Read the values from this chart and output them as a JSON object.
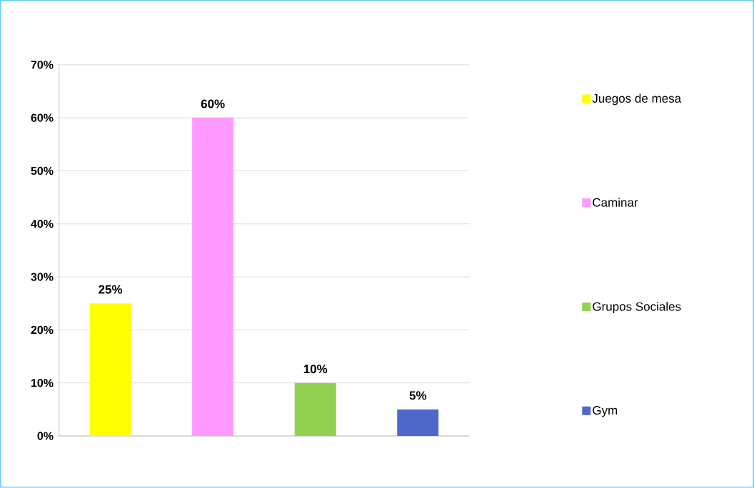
{
  "chart_data": {
    "type": "bar",
    "categories": [
      null,
      null,
      null,
      null
    ],
    "series": [
      {
        "name": "Juegos de mesa",
        "color": "#ffff00",
        "values": [
          25,
          null,
          null,
          null
        ],
        "value_labels": [
          "25%",
          null,
          null,
          null
        ]
      },
      {
        "name": "Caminar",
        "color": "#ff99ff",
        "values": [
          null,
          60,
          null,
          null
        ],
        "value_labels": [
          null,
          "60%",
          null,
          null
        ]
      },
      {
        "name": "Grupos Sociales",
        "color": "#92d050",
        "values": [
          null,
          null,
          10,
          null
        ],
        "value_labels": [
          null,
          null,
          "10%",
          null
        ]
      },
      {
        "name": "Gym",
        "color": "#4f67c8",
        "values": [
          null,
          null,
          null,
          5
        ],
        "value_labels": [
          null,
          null,
          null,
          "5%"
        ]
      }
    ],
    "ylim": [
      0,
      70
    ],
    "yticks": [
      {
        "value": 0,
        "label": "0%"
      },
      {
        "value": 10,
        "label": "10%"
      },
      {
        "value": 20,
        "label": "20%"
      },
      {
        "value": 30,
        "label": "30%"
      },
      {
        "value": 40,
        "label": "40%"
      },
      {
        "value": 50,
        "label": "50%"
      },
      {
        "value": 60,
        "label": "60%"
      },
      {
        "value": 70,
        "label": "70%"
      }
    ],
    "grid": "y",
    "legend": "right"
  }
}
